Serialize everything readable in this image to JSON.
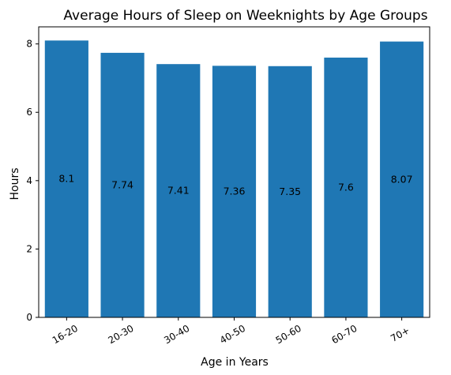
{
  "chart_data": {
    "type": "bar",
    "title": "Average Hours of Sleep on Weeknights by Age Groups",
    "xlabel": "Age in Years",
    "ylabel": "Hours",
    "categories": [
      "16-20",
      "20-30",
      "30-40",
      "40-50",
      "50-60",
      "60-70",
      "70+"
    ],
    "values": [
      8.1,
      7.74,
      7.41,
      7.36,
      7.35,
      7.6,
      8.07
    ],
    "data_labels": [
      "8.1",
      "7.74",
      "7.41",
      "7.36",
      "7.35",
      "7.6",
      "8.07"
    ],
    "ylim": [
      0,
      8.5
    ],
    "yticks": [
      0,
      2,
      4,
      6,
      8
    ],
    "ytick_labels": [
      "0",
      "2",
      "4",
      "6",
      "8"
    ],
    "xtick_rotation_deg": -30,
    "grid": false,
    "legend": "none",
    "bar_color": "#1f77b4"
  }
}
